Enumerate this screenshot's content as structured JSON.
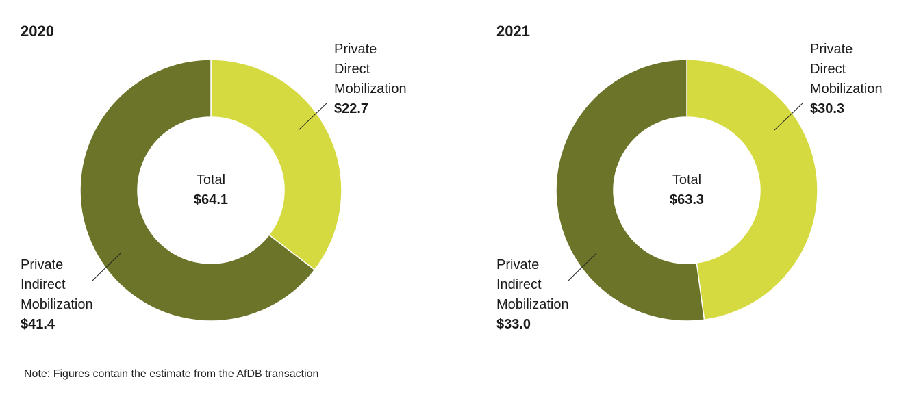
{
  "chart_data": [
    {
      "type": "pie",
      "donut": true,
      "title": "2020",
      "categories": [
        "Private Direct Mobilization",
        "Private Indirect Mobilization"
      ],
      "values": [
        22.7,
        41.4
      ],
      "value_labels": [
        "$22.7",
        "$41.4"
      ],
      "colors": [
        "#d4da40",
        "#6b7428"
      ],
      "center_title": "Total",
      "total": {
        "value": 64.1,
        "label": "$64.1"
      }
    },
    {
      "type": "pie",
      "donut": true,
      "title": "2021",
      "categories": [
        "Private Direct Mobilization",
        "Private Indirect Mobilization"
      ],
      "values": [
        30.3,
        33.0
      ],
      "value_labels": [
        "$30.3",
        "$33.0"
      ],
      "colors": [
        "#d4da40",
        "#6b7428"
      ],
      "center_title": "Total",
      "total": {
        "value": 63.3,
        "label": "$63.3"
      }
    }
  ],
  "note": "Note: Figures contain the estimate from the AfDB transaction"
}
